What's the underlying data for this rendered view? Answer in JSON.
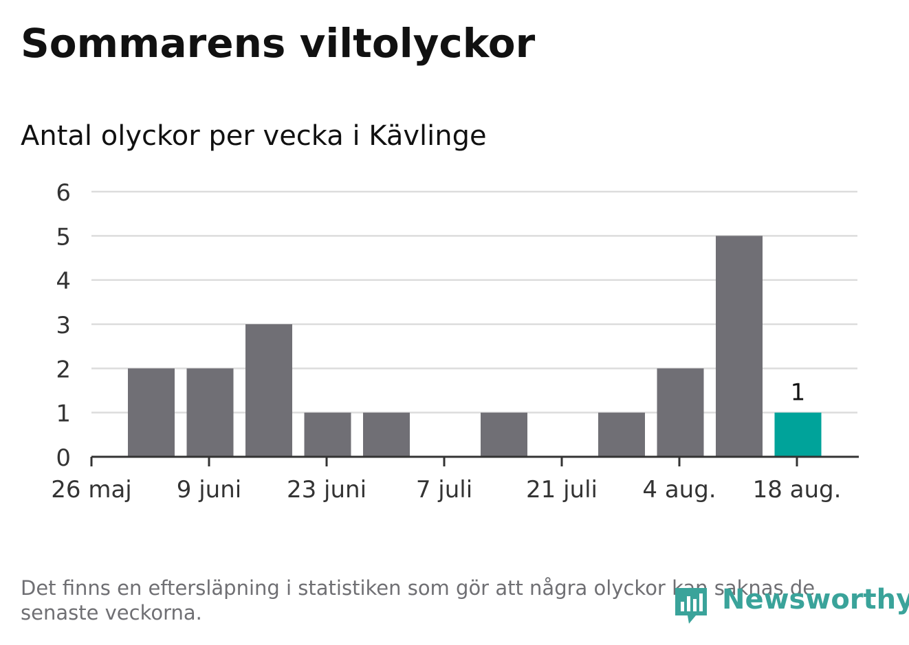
{
  "title": "Sommarens viltolyckor",
  "subtitle": "Antal olyckor per vecka i Kävlinge",
  "footnote": "Det finns en eftersläpning i statistiken som gör att några olyckor kan saknas de senaste veckorna.",
  "brand": {
    "name": "Newsworthy",
    "icon": "newsworthy-logo-icon",
    "color": "#3aa39a"
  },
  "colors": {
    "bar": "#706f75",
    "highlight": "#00a39a",
    "grid": "#dcdcdc",
    "axis": "#333333"
  },
  "chart_data": {
    "type": "bar",
    "title": "Sommarens viltolyckor",
    "subtitle": "Antal olyckor per vecka i Kävlinge",
    "xlabel": "",
    "ylabel": "",
    "x_ticks": [
      "26 maj",
      "9 juni",
      "23 juni",
      "7 juli",
      "21 juli",
      "4 aug.",
      "18 aug."
    ],
    "weeks": [
      "2019-05-27",
      "2019-06-03",
      "2019-06-10",
      "2019-06-17",
      "2019-06-24",
      "2019-07-01",
      "2019-07-08",
      "2019-07-15",
      "2019-07-22",
      "2019-07-29",
      "2019-08-05",
      "2019-08-12"
    ],
    "values": [
      2,
      2,
      3,
      1,
      1,
      0,
      1,
      0,
      1,
      2,
      5,
      1
    ],
    "highlight_index": 11,
    "data_labels": [
      {
        "index": 11,
        "text": "1"
      }
    ],
    "ylim": [
      0,
      6
    ],
    "y_ticks": [
      0,
      1,
      2,
      3,
      4,
      5,
      6
    ],
    "grid": true,
    "legend": "none"
  }
}
